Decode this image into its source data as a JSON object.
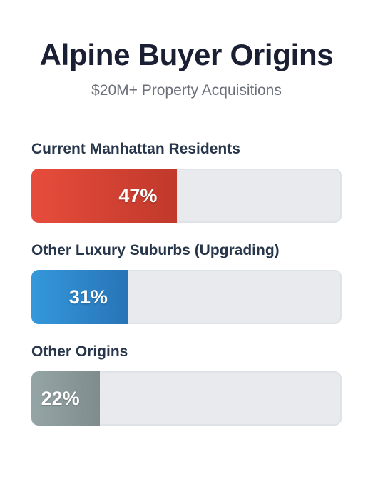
{
  "title": "Alpine Buyer Origins",
  "subtitle": "$20M+ Property Acquisitions",
  "chart_data": {
    "type": "bar",
    "orientation": "horizontal",
    "title": "Alpine Buyer Origins",
    "subtitle": "$20M+ Property Acquisitions",
    "categories": [
      "Current Manhattan Residents",
      "Other Luxury Suburbs (Upgrading)",
      "Other Origins"
    ],
    "values": [
      47,
      31,
      22
    ],
    "value_labels": [
      "47%",
      "31%",
      "22%"
    ],
    "unit": "%",
    "xlim": [
      0,
      100
    ],
    "grid": false,
    "legend": "none",
    "colors": [
      [
        "#e74c3c",
        "#c0392b"
      ],
      [
        "#3498db",
        "#2874b8"
      ],
      [
        "#95a5a6",
        "#7f8c8d"
      ]
    ],
    "track_color": "#e8eaee"
  }
}
